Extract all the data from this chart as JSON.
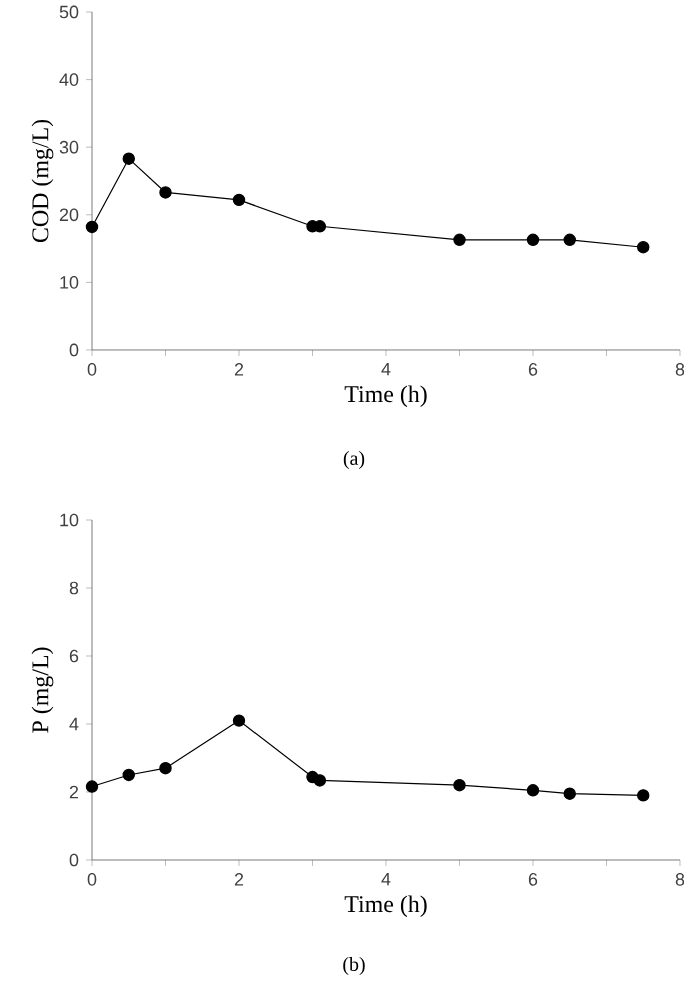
{
  "chart_data": [
    {
      "type": "line",
      "xlabel": "Time (h)",
      "ylabel": "COD (mg/L)",
      "annotations": [
        "(a)"
      ],
      "x": [
        0,
        0.5,
        1,
        2,
        3,
        3.1,
        5,
        6,
        6.5,
        7.5
      ],
      "series": [
        {
          "color": "#000000",
          "values": [
            18.2,
            28.3,
            23.3,
            22.2,
            18.3,
            18.3,
            16.3,
            16.3,
            16.3,
            15.2
          ]
        }
      ],
      "xlim": [
        0,
        8
      ],
      "ylim": [
        0,
        50
      ],
      "xticks": [
        0,
        {
          "value": 1,
          "label": null
        },
        2,
        {
          "value": 3,
          "label": null
        },
        4,
        {
          "value": 5,
          "label": null
        },
        6,
        {
          "value": 7,
          "label": null
        },
        8
      ],
      "yticks": [
        0,
        10,
        20,
        30,
        40,
        50
      ],
      "marker": "circle",
      "line_style": "solid"
    },
    {
      "type": "line",
      "xlabel": "Time (h)",
      "ylabel": "P (mg/L)",
      "annotations": [
        "(b)"
      ],
      "x": [
        0,
        0.5,
        1,
        2,
        3,
        3.1,
        5,
        6,
        6.5,
        7.5
      ],
      "series": [
        {
          "color": "#000000",
          "values": [
            2.16,
            2.5,
            2.7,
            4.1,
            2.44,
            2.34,
            2.2,
            2.05,
            1.95,
            1.9
          ]
        }
      ],
      "xlim": [
        0,
        8
      ],
      "ylim": [
        0,
        10
      ],
      "xticks": [
        0,
        {
          "value": 1,
          "label": null
        },
        2,
        {
          "value": 3,
          "label": null
        },
        4,
        {
          "value": 5,
          "label": null
        },
        6,
        {
          "value": 7,
          "label": null
        },
        8
      ],
      "yticks": [
        0,
        2,
        4,
        6,
        8,
        10
      ],
      "marker": "circle",
      "line_style": "solid"
    }
  ]
}
